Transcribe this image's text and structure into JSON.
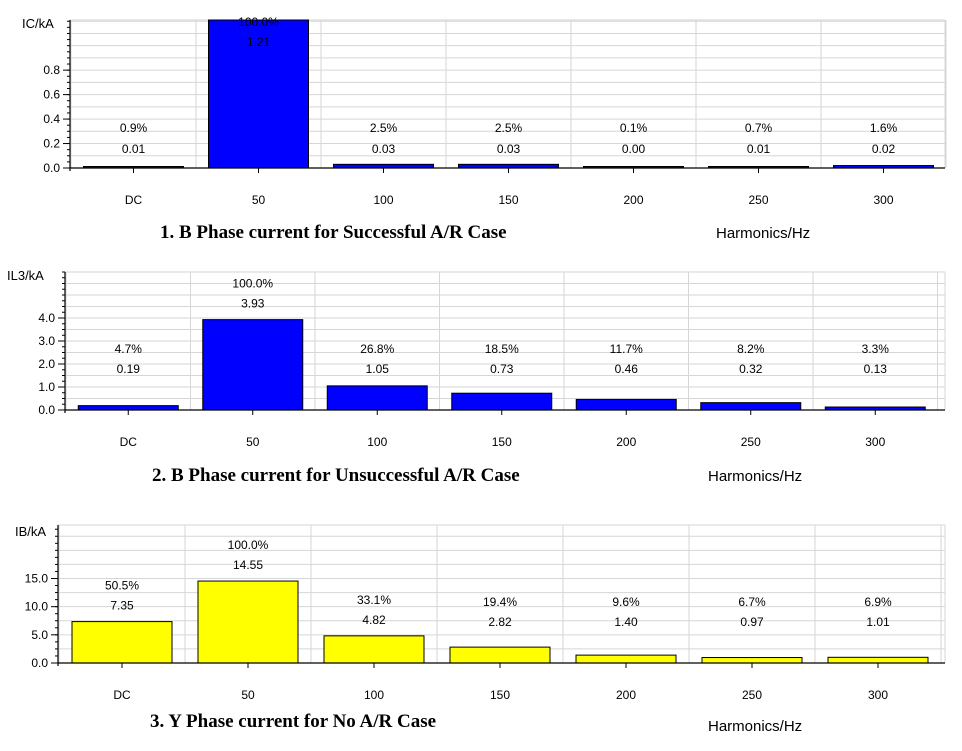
{
  "chart_data": [
    {
      "type": "bar",
      "title": "1. B Phase current for Successful A/R Case",
      "ylabel": "IC/kA",
      "xlabel": "Harmonics/Hz",
      "categories": [
        "DC",
        "50",
        "100",
        "150",
        "200",
        "250",
        "300"
      ],
      "values": [
        0.01,
        1.21,
        0.03,
        0.03,
        0.0,
        0.01,
        0.02
      ],
      "value_labels": [
        "0.01",
        "1.21",
        "0.03",
        "0.03",
        "0.00",
        "0.01",
        "0.02"
      ],
      "percent_labels": [
        "0.9%",
        "100.0%",
        "2.5%",
        "2.5%",
        "0.1%",
        "0.7%",
        "1.6%"
      ],
      "yticks": [
        "0.0",
        "0.2",
        "0.4",
        "0.6",
        "0.8"
      ],
      "ylim": [
        0,
        1.21
      ],
      "bar_color": "#0000ff",
      "grid": true
    },
    {
      "type": "bar",
      "title": "2. B Phase current for Unsuccessful A/R Case",
      "ylabel": "IL3/kA",
      "xlabel": "Harmonics/Hz",
      "categories": [
        "DC",
        "50",
        "100",
        "150",
        "200",
        "250",
        "300"
      ],
      "values": [
        0.19,
        3.93,
        1.05,
        0.73,
        0.46,
        0.32,
        0.13
      ],
      "value_labels": [
        "0.19",
        "3.93",
        "1.05",
        "0.73",
        "0.46",
        "0.32",
        "0.13"
      ],
      "percent_labels": [
        "4.7%",
        "100.0%",
        "26.8%",
        "18.5%",
        "11.7%",
        "8.2%",
        "3.3%"
      ],
      "yticks": [
        "0.0",
        "1.0",
        "2.0",
        "3.0",
        "4.0"
      ],
      "ylim": [
        0,
        6.0
      ],
      "bar_color": "#0000ff",
      "grid": true
    },
    {
      "type": "bar",
      "title": "3. Y Phase current for No A/R Case",
      "ylabel": "IB/kA",
      "xlabel": "Harmonics/Hz",
      "categories": [
        "DC",
        "50",
        "100",
        "150",
        "200",
        "250",
        "300"
      ],
      "values": [
        7.35,
        14.55,
        4.82,
        2.82,
        1.4,
        0.97,
        1.01
      ],
      "value_labels": [
        "7.35",
        "14.55",
        "4.82",
        "2.82",
        "1.40",
        "0.97",
        "1.01"
      ],
      "percent_labels": [
        "50.5%",
        "100.0%",
        "33.1%",
        "19.4%",
        "9.6%",
        "6.7%",
        "6.9%"
      ],
      "yticks": [
        "0.0",
        "5.0",
        "10.0",
        "15.0"
      ],
      "ylim": [
        0,
        24.5
      ],
      "bar_color": "#ffff00",
      "grid": true
    }
  ]
}
